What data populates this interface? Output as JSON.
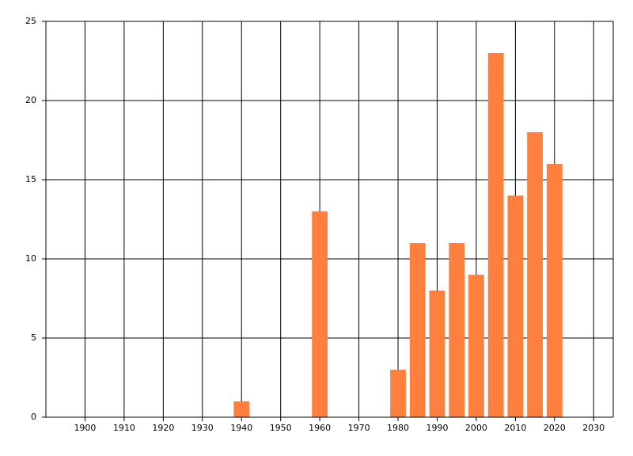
{
  "chart_data": {
    "type": "bar",
    "x": [
      1940,
      1960,
      1980,
      1985,
      1990,
      1995,
      2000,
      2005,
      2010,
      2015,
      2020
    ],
    "values": [
      1,
      13,
      3,
      11,
      8,
      11,
      9,
      23,
      14,
      18,
      16
    ],
    "color": "#ff7f3f",
    "xlim": [
      1890,
      2035
    ],
    "xticks": [
      1900,
      1910,
      1920,
      1930,
      1940,
      1950,
      1960,
      1970,
      1980,
      1990,
      2000,
      2010,
      2020,
      2030
    ],
    "ylim": [
      0,
      25
    ],
    "yticks": [
      0,
      5,
      10,
      15,
      20,
      25
    ],
    "grid": true
  }
}
